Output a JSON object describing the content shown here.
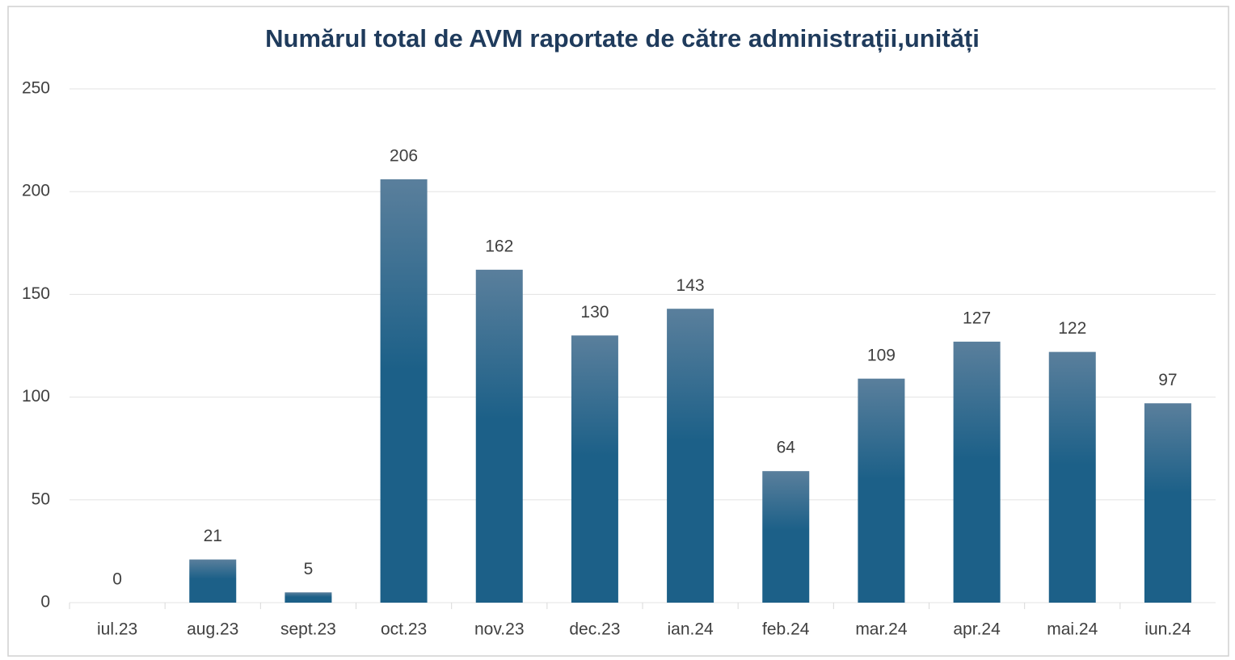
{
  "chart_data": {
    "type": "bar",
    "title": "Numărul total de AVM raportate de către administrații,unități",
    "categories": [
      "iul.23",
      "aug.23",
      "sept.23",
      "oct.23",
      "nov.23",
      "dec.23",
      "ian.24",
      "feb.24",
      "mar.24",
      "apr.24",
      "mai.24",
      "iun.24"
    ],
    "values": [
      0,
      21,
      5,
      206,
      162,
      130,
      143,
      64,
      109,
      127,
      122,
      97
    ],
    "color": "#1c6088",
    "ylim": [
      0,
      250
    ],
    "yticks": [
      0,
      50,
      100,
      150,
      200,
      250
    ],
    "grid": true
  }
}
